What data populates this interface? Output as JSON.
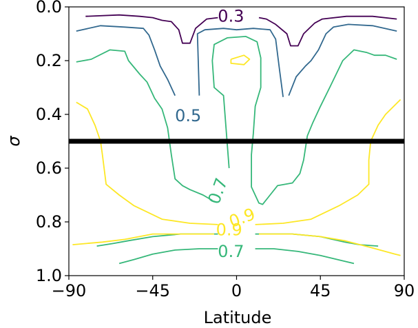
{
  "chart_data": {
    "type": "contour",
    "xlabel": "Latitude",
    "ylabel": "σ",
    "xlim": [
      -90,
      90
    ],
    "ylim": [
      1.0,
      0.0
    ],
    "y_inverted": true,
    "xticks": [
      -90,
      -45,
      0,
      45,
      90
    ],
    "xtick_labels": [
      "−90",
      "−45",
      "0",
      "45",
      "90"
    ],
    "yticks": [
      0.0,
      0.2,
      0.4,
      0.6,
      0.8,
      1.0
    ],
    "ytick_labels": [
      "0.0",
      "0.2",
      "0.4",
      "0.6",
      "0.8",
      "1.0"
    ],
    "hline": {
      "y": 0.5,
      "color": "#000000"
    },
    "contours": [
      {
        "level": 0.3,
        "color": "#440154",
        "lines": [
          [
            [
              -81,
              0.035
            ],
            [
              -63,
              0.03
            ],
            [
              -52,
              0.035
            ],
            [
              -45,
              0.04
            ],
            [
              -40,
              0.05
            ],
            [
              -35,
              0.055
            ],
            [
              -31,
              0.085
            ],
            [
              -29,
              0.135
            ],
            [
              -25,
              0.135
            ],
            [
              -22,
              0.08
            ],
            [
              -16,
              0.045
            ],
            [
              -10,
              0.04
            ]
          ],
          [
            [
              12,
              0.04
            ],
            [
              16,
              0.045
            ],
            [
              21,
              0.065
            ],
            [
              27,
              0.1
            ],
            [
              29,
              0.145
            ],
            [
              33,
              0.145
            ],
            [
              36,
              0.1
            ],
            [
              42,
              0.06
            ],
            [
              46,
              0.045
            ],
            [
              59,
              0.035
            ],
            [
              73,
              0.035
            ],
            [
              86,
              0.045
            ]
          ]
        ],
        "label": {
          "text": "0.3",
          "x": -3,
          "y": 0.035,
          "angle": 0
        }
      },
      {
        "level": 0.5,
        "color": "#31688e",
        "lines": [
          [
            [
              -86,
              0.09
            ],
            [
              -73,
              0.07
            ],
            [
              -60,
              0.075
            ],
            [
              -50,
              0.08
            ],
            [
              -47,
              0.105
            ],
            [
              -44,
              0.16
            ],
            [
              -41,
              0.22
            ],
            [
              -37,
              0.27
            ],
            [
              -33,
              0.33
            ]
          ],
          [
            [
              -20,
              0.33
            ],
            [
              -21,
              0.1
            ],
            [
              -17,
              0.085
            ],
            [
              -7,
              0.08
            ],
            [
              0,
              0.085
            ],
            [
              9,
              0.08
            ],
            [
              18,
              0.085
            ],
            [
              21,
              0.12
            ],
            [
              23,
              0.23
            ],
            [
              25,
              0.335
            ]
          ],
          [
            [
              28,
              0.33
            ],
            [
              32,
              0.26
            ],
            [
              37,
              0.22
            ],
            [
              40,
              0.2
            ],
            [
              44,
              0.16
            ],
            [
              48,
              0.1
            ],
            [
              52,
              0.075
            ],
            [
              60,
              0.065
            ],
            [
              73,
              0.07
            ],
            [
              86,
              0.09
            ]
          ]
        ],
        "label": {
          "text": "0.5",
          "x": -26,
          "y": 0.405,
          "angle": 0
        }
      },
      {
        "level": 0.7,
        "color": "#35b779",
        "lines": [
          [
            [
              -86,
              0.205
            ],
            [
              -78,
              0.195
            ],
            [
              -68,
              0.16
            ],
            [
              -60,
              0.165
            ],
            [
              -58,
              0.2
            ],
            [
              -52,
              0.25
            ],
            [
              -48,
              0.28
            ],
            [
              -44,
              0.34
            ],
            [
              -40,
              0.38
            ],
            [
              -37,
              0.45
            ],
            [
              -35,
              0.55
            ],
            [
              -33,
              0.64
            ],
            [
              -29,
              0.665
            ],
            [
              -25,
              0.68
            ],
            [
              -18,
              0.7
            ],
            [
              -13,
              0.72
            ]
          ],
          [
            [
              -4,
              0.6
            ],
            [
              -7,
              0.33
            ],
            [
              -12,
              0.3
            ],
            [
              -13,
              0.2
            ],
            [
              -12,
              0.14
            ],
            [
              -5,
              0.115
            ],
            [
              5,
              0.11
            ],
            [
              11,
              0.13
            ],
            [
              13,
              0.19
            ],
            [
              13,
              0.3
            ],
            [
              10,
              0.37
            ],
            [
              9,
              0.47
            ],
            [
              8,
              0.55
            ],
            [
              8,
              0.67
            ],
            [
              12,
              0.73
            ],
            [
              14,
              0.735
            ],
            [
              18,
              0.7
            ],
            [
              22,
              0.665
            ],
            [
              30,
              0.655
            ],
            [
              34,
              0.62
            ],
            [
              36,
              0.57
            ],
            [
              38,
              0.48
            ],
            [
              41,
              0.43
            ],
            [
              45,
              0.37
            ],
            [
              50,
              0.3
            ],
            [
              57,
              0.2
            ],
            [
              63,
              0.16
            ],
            [
              70,
              0.17
            ],
            [
              74,
              0.18
            ],
            [
              80,
              0.18
            ],
            [
              86,
              0.195
            ]
          ],
          [
            [
              -63,
              0.955
            ],
            [
              -55,
              0.94
            ],
            [
              -45,
              0.92
            ],
            [
              -33,
              0.905
            ],
            [
              -20,
              0.9
            ],
            [
              -10,
              0.9
            ]
          ],
          [
            [
              10,
              0.9
            ],
            [
              20,
              0.9
            ],
            [
              33,
              0.91
            ],
            [
              45,
              0.925
            ],
            [
              57,
              0.945
            ],
            [
              63,
              0.955
            ]
          ]
        ],
        "extra_lines": [
          [
            [
              -10,
              0.845
            ],
            [
              -30,
              0.845
            ],
            [
              -45,
              0.855
            ],
            [
              -58,
              0.87
            ],
            [
              -66,
              0.88
            ],
            [
              -75,
              0.89
            ]
          ],
          [
            [
              10,
              0.845
            ],
            [
              30,
              0.845
            ],
            [
              45,
              0.855
            ],
            [
              58,
              0.875
            ],
            [
              66,
              0.885
            ],
            [
              76,
              0.89
            ]
          ]
        ],
        "labels": [
          {
            "text": "0.7",
            "x": -10,
            "y": 0.685,
            "angle": -70
          },
          {
            "text": "0.7",
            "x": -3,
            "y": 0.91,
            "angle": 0
          }
        ]
      },
      {
        "level": 0.9,
        "color": "#fde725",
        "lines": [
          [
            [
              -86,
              0.355
            ],
            [
              -80,
              0.38
            ],
            [
              -76,
              0.44
            ],
            [
              -73,
              0.5
            ],
            [
              -72,
              0.55
            ],
            [
              -70,
              0.66
            ],
            [
              -63,
              0.7
            ],
            [
              -55,
              0.74
            ],
            [
              -40,
              0.79
            ],
            [
              -25,
              0.805
            ],
            [
              -10,
              0.81
            ]
          ],
          [
            [
              10,
              0.81
            ],
            [
              25,
              0.805
            ],
            [
              40,
              0.79
            ],
            [
              55,
              0.74
            ],
            [
              65,
              0.7
            ],
            [
              71,
              0.66
            ],
            [
              71,
              0.57
            ],
            [
              72,
              0.5
            ],
            [
              76,
              0.44
            ],
            [
              80,
              0.4
            ],
            [
              88,
              0.345
            ]
          ],
          [
            [
              -88,
              0.885
            ],
            [
              -72,
              0.875
            ],
            [
              -60,
              0.865
            ],
            [
              -45,
              0.845
            ],
            [
              -30,
              0.845
            ],
            [
              -12,
              0.845
            ]
          ],
          [
            [
              12,
              0.845
            ],
            [
              30,
              0.845
            ],
            [
              45,
              0.855
            ],
            [
              58,
              0.87
            ],
            [
              72,
              0.895
            ],
            [
              85,
              0.92
            ],
            [
              88,
              0.925
            ]
          ],
          [
            [
              -3,
              0.195
            ],
            [
              4,
              0.18
            ],
            [
              7,
              0.195
            ],
            [
              4,
              0.215
            ],
            [
              -3,
              0.21
            ],
            [
              -3,
              0.195
            ]
          ]
        ],
        "labels": [
          {
            "text": "0.9",
            "x": 3,
            "y": 0.785,
            "angle": -20
          },
          {
            "text": "0.9",
            "x": -4,
            "y": 0.83,
            "angle": 0
          }
        ]
      }
    ],
    "grid": false,
    "legend": "none"
  }
}
